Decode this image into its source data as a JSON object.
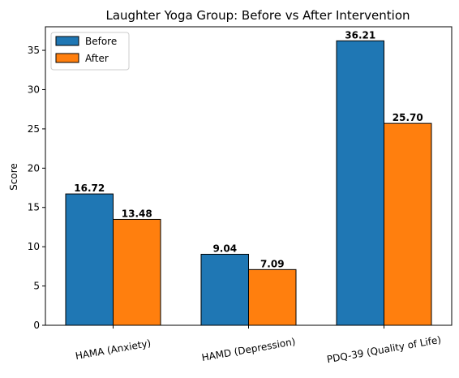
{
  "chart_data": {
    "type": "bar",
    "title": "Laughter Yoga Group: Before vs After Intervention",
    "xlabel": "",
    "ylabel": "Score",
    "categories": [
      "HAMA (Anxiety)",
      "HAMD (Depression)",
      "PDQ-39 (Quality of Life)"
    ],
    "series": [
      {
        "name": "Before",
        "color": "#1f77b4",
        "values": [
          16.72,
          9.04,
          36.21
        ],
        "labels": [
          "16.72",
          "9.04",
          "36.21"
        ]
      },
      {
        "name": "After",
        "color": "#ff7f0e",
        "values": [
          13.48,
          7.09,
          25.7
        ],
        "labels": [
          "13.48",
          "7.09",
          "25.70"
        ]
      }
    ],
    "ylim": [
      0,
      38
    ],
    "yticks": [
      0,
      5,
      10,
      15,
      20,
      25,
      30,
      35
    ],
    "grid": false,
    "legend_position": "top-left",
    "category_label_rotation": "slight counter-clockwise"
  }
}
